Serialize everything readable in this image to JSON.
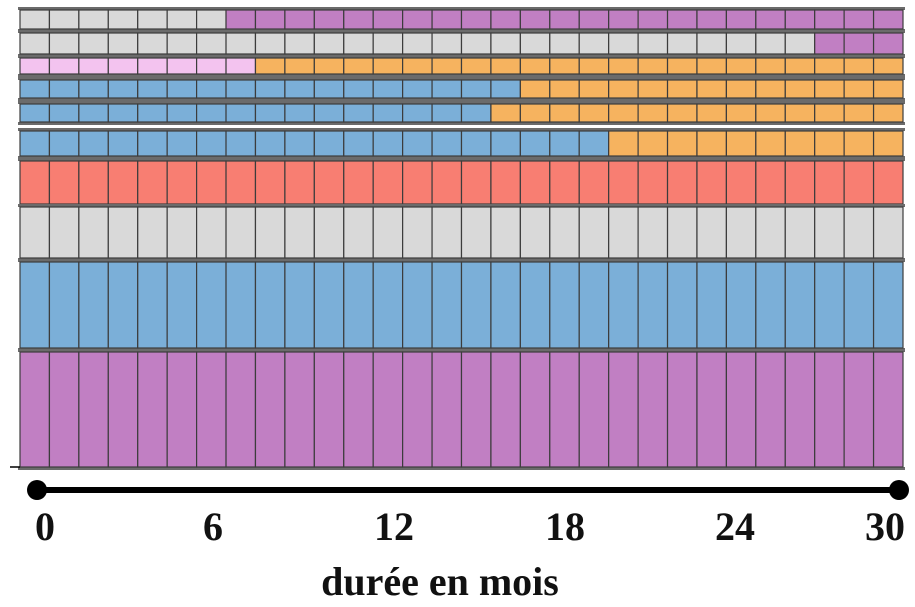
{
  "colors": {
    "gray": "#d9d9d9",
    "purple": "#c17fc3",
    "pink": "#f3c3ef",
    "blue": "#7bafd8",
    "orange": "#f6b35f",
    "red": "#f87e72",
    "separator": "#6b6b6b",
    "cell_border": "#3c3c3c",
    "axis": "#000000"
  },
  "total_months": 30,
  "rows": [
    {
      "name": "row-1",
      "segments": [
        {
          "color": "gray",
          "months": 7
        },
        {
          "color": "purple",
          "months": 23
        }
      ]
    },
    {
      "name": "row-2",
      "segments": [
        {
          "color": "gray",
          "months": 27
        },
        {
          "color": "purple",
          "months": 3
        }
      ]
    },
    {
      "name": "row-3",
      "segments": [
        {
          "color": "pink",
          "months": 8
        },
        {
          "color": "orange",
          "months": 22
        }
      ]
    },
    {
      "name": "row-4",
      "segments": [
        {
          "color": "blue",
          "months": 17
        },
        {
          "color": "orange",
          "months": 13
        }
      ]
    },
    {
      "name": "row-5",
      "segments": [
        {
          "color": "blue",
          "months": 16
        },
        {
          "color": "orange",
          "months": 14
        }
      ]
    },
    {
      "name": "row-6",
      "segments": [
        {
          "color": "blue",
          "months": 20
        },
        {
          "color": "orange",
          "months": 10
        }
      ]
    },
    {
      "name": "row-7",
      "segments": [
        {
          "color": "red",
          "months": 30
        }
      ]
    },
    {
      "name": "row-8",
      "segments": [
        {
          "color": "gray",
          "months": 30
        }
      ]
    },
    {
      "name": "row-9",
      "segments": [
        {
          "color": "blue",
          "months": 30
        }
      ]
    },
    {
      "name": "row-10",
      "segments": [
        {
          "color": "purple",
          "months": 30
        }
      ]
    }
  ],
  "axis": {
    "ticks": [
      "0",
      "6",
      "12",
      "18",
      "24",
      "30"
    ],
    "title": "durée en mois"
  }
}
